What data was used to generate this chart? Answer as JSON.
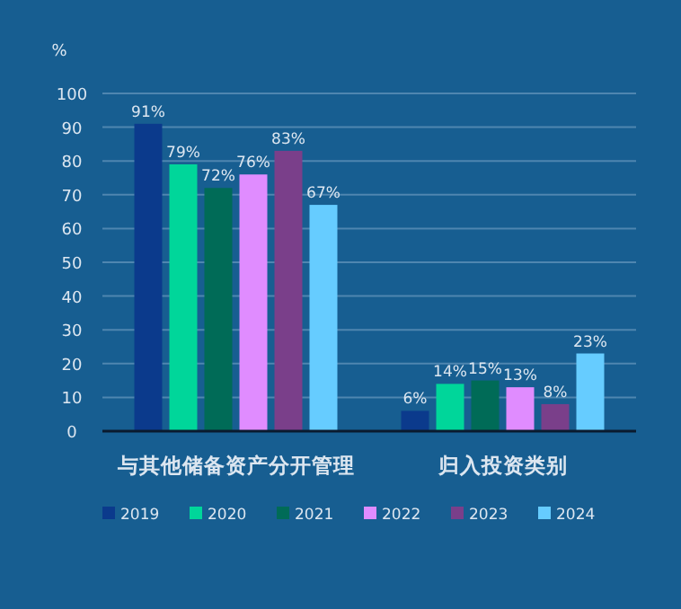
{
  "chart_data": {
    "type": "bar",
    "ylabel": "%",
    "categories": [
      "与其他储备资产分开管理",
      "归入投资类别"
    ],
    "ylim": [
      0,
      100
    ],
    "yticks": [
      0,
      10,
      20,
      30,
      40,
      50,
      60,
      70,
      80,
      90,
      100
    ],
    "grid": "y",
    "legend": "bottom",
    "series": [
      {
        "name": "2019",
        "color": "#0b3a8c",
        "values": [
          91,
          6
        ],
        "value_labels": [
          "91%",
          "6%"
        ]
      },
      {
        "name": "2020",
        "color": "#00d69a",
        "values": [
          79,
          14
        ],
        "value_labels": [
          "79%",
          "14%"
        ]
      },
      {
        "name": "2021",
        "color": "#006b57",
        "values": [
          72,
          15
        ],
        "value_labels": [
          "72%",
          "15%"
        ]
      },
      {
        "name": "2022",
        "color": "#e08cff",
        "values": [
          76,
          13
        ],
        "value_labels": [
          "76%",
          "13%"
        ]
      },
      {
        "name": "2023",
        "color": "#7a3f8a",
        "values": [
          83,
          8
        ],
        "value_labels": [
          "83%",
          "8%"
        ]
      },
      {
        "name": "2024",
        "color": "#66ccff",
        "values": [
          67,
          23
        ],
        "value_labels": [
          "67%",
          "23%"
        ]
      }
    ]
  }
}
